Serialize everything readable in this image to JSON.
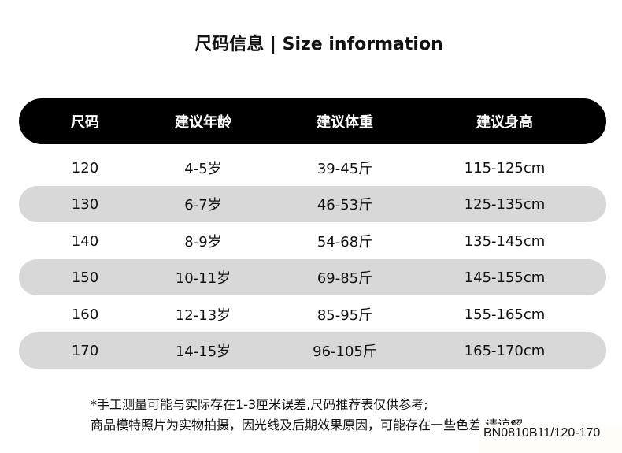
{
  "title": "尺码信息 | Size information",
  "table": {
    "headers": [
      "尺码",
      "建议年龄",
      "建议体重",
      "建议身高"
    ],
    "rows": [
      [
        "120",
        "4-5岁",
        "39-45斤",
        "115-125cm"
      ],
      [
        "130",
        "6-7岁",
        "46-53斤",
        "125-135cm"
      ],
      [
        "140",
        "8-9岁",
        "54-68斤",
        "135-145cm"
      ],
      [
        "150",
        "10-11岁",
        "69-85斤",
        "145-155cm"
      ],
      [
        "160",
        "12-13岁",
        "85-95斤",
        "155-165cm"
      ],
      [
        "170",
        "14-15岁",
        "96-105斤",
        "165-170cm"
      ]
    ]
  },
  "notes": [
    "*手工测量可能与实际存在1-3厘米误差,尺码推荐表仅供参考;",
    "商品模特照片为实物拍摄，因光线及后期效果原因，可能存在一些色差,请谅解"
  ],
  "product_code": "BN0810B11/120-170",
  "colors": {
    "header_bg": "#000000",
    "shaded_row": "#d8d8d8"
  }
}
